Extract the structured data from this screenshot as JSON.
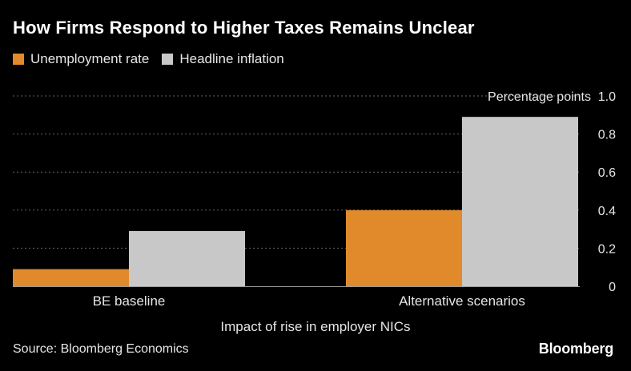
{
  "title": "How Firms Respond to Higher Taxes Remains Unclear",
  "source": "Source: Bloomberg Economics",
  "brand": "Bloomberg",
  "colors": {
    "background": "#000000",
    "unemployment": "#e08a2c",
    "inflation": "#c8c8c8",
    "grid": "#666666",
    "text": "#e6e6e6"
  },
  "chart_data": {
    "type": "bar",
    "categories": [
      "BE baseline",
      "Alternative scenarios"
    ],
    "series": [
      {
        "name": "Unemployment rate",
        "color": "#e08a2c",
        "values": [
          0.09,
          0.4
        ]
      },
      {
        "name": "Headline inflation",
        "color": "#c8c8c8",
        "values": [
          0.29,
          0.89
        ]
      }
    ],
    "xlabel": "Impact of rise in employer NICs",
    "ylabel": "Percentage points",
    "ylim": [
      0,
      1.0
    ],
    "yticks": [
      {
        "value": 0,
        "label": "0"
      },
      {
        "value": 0.2,
        "label": "0.2"
      },
      {
        "value": 0.4,
        "label": "0.4"
      },
      {
        "value": 0.6,
        "label": "0.6"
      },
      {
        "value": 0.8,
        "label": "0.8"
      },
      {
        "value": 1.0,
        "label": "1.0"
      }
    ],
    "grid": true,
    "legend": "top-left"
  }
}
